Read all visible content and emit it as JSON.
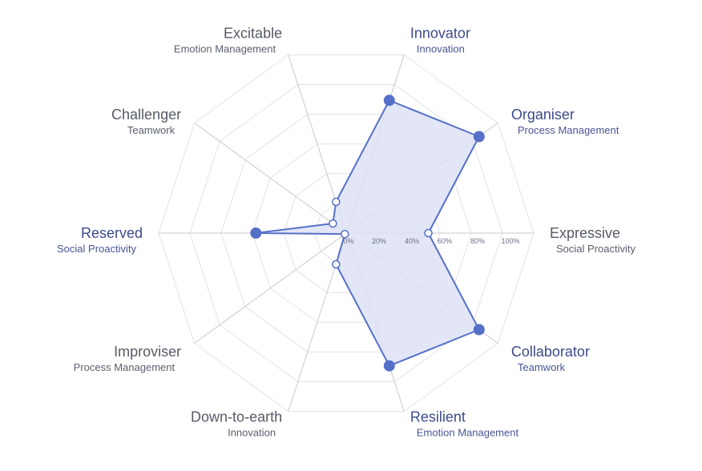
{
  "chart_data": {
    "type": "radar",
    "range": [
      0,
      100
    ],
    "ticks": [
      "0%",
      "20%",
      "40%",
      "60%",
      "80%",
      "100%"
    ],
    "axes": [
      {
        "title": "Expressive",
        "subtitle": "Social Proactivity",
        "value": 50,
        "highlight": false
      },
      {
        "title": "Organiser",
        "subtitle": "Process Management",
        "value": 100,
        "highlight": true
      },
      {
        "title": "Innovator",
        "subtitle": "Innovation",
        "value": 85,
        "highlight": true
      },
      {
        "title": "Excitable",
        "subtitle": "Emotion Management",
        "value": 20,
        "highlight": false
      },
      {
        "title": "Challenger",
        "subtitle": "Teamwork",
        "value": 10,
        "highlight": false
      },
      {
        "title": "Reserved",
        "subtitle": "Social Proactivity",
        "value": 55,
        "highlight": true
      },
      {
        "title": "Improviser",
        "subtitle": "Process Management",
        "value": 1,
        "highlight": false
      },
      {
        "title": "Down-to-earth",
        "subtitle": "Innovation",
        "value": 20,
        "highlight": false
      },
      {
        "title": "Resilient",
        "subtitle": "Emotion Management",
        "value": 85,
        "highlight": true
      },
      {
        "title": "Collaborator",
        "subtitle": "Teamwork",
        "value": 100,
        "highlight": true
      }
    ],
    "colors": {
      "series": "#5670c8",
      "fill": "#dde2f4",
      "highlight_title": "#3d4a8a",
      "muted_title": "#555a66",
      "subtitle": "#4a5494",
      "muted_subtitle": "#5a5f6e",
      "grid": "#e2e3e8",
      "axis": "#c8c9cf"
    }
  }
}
